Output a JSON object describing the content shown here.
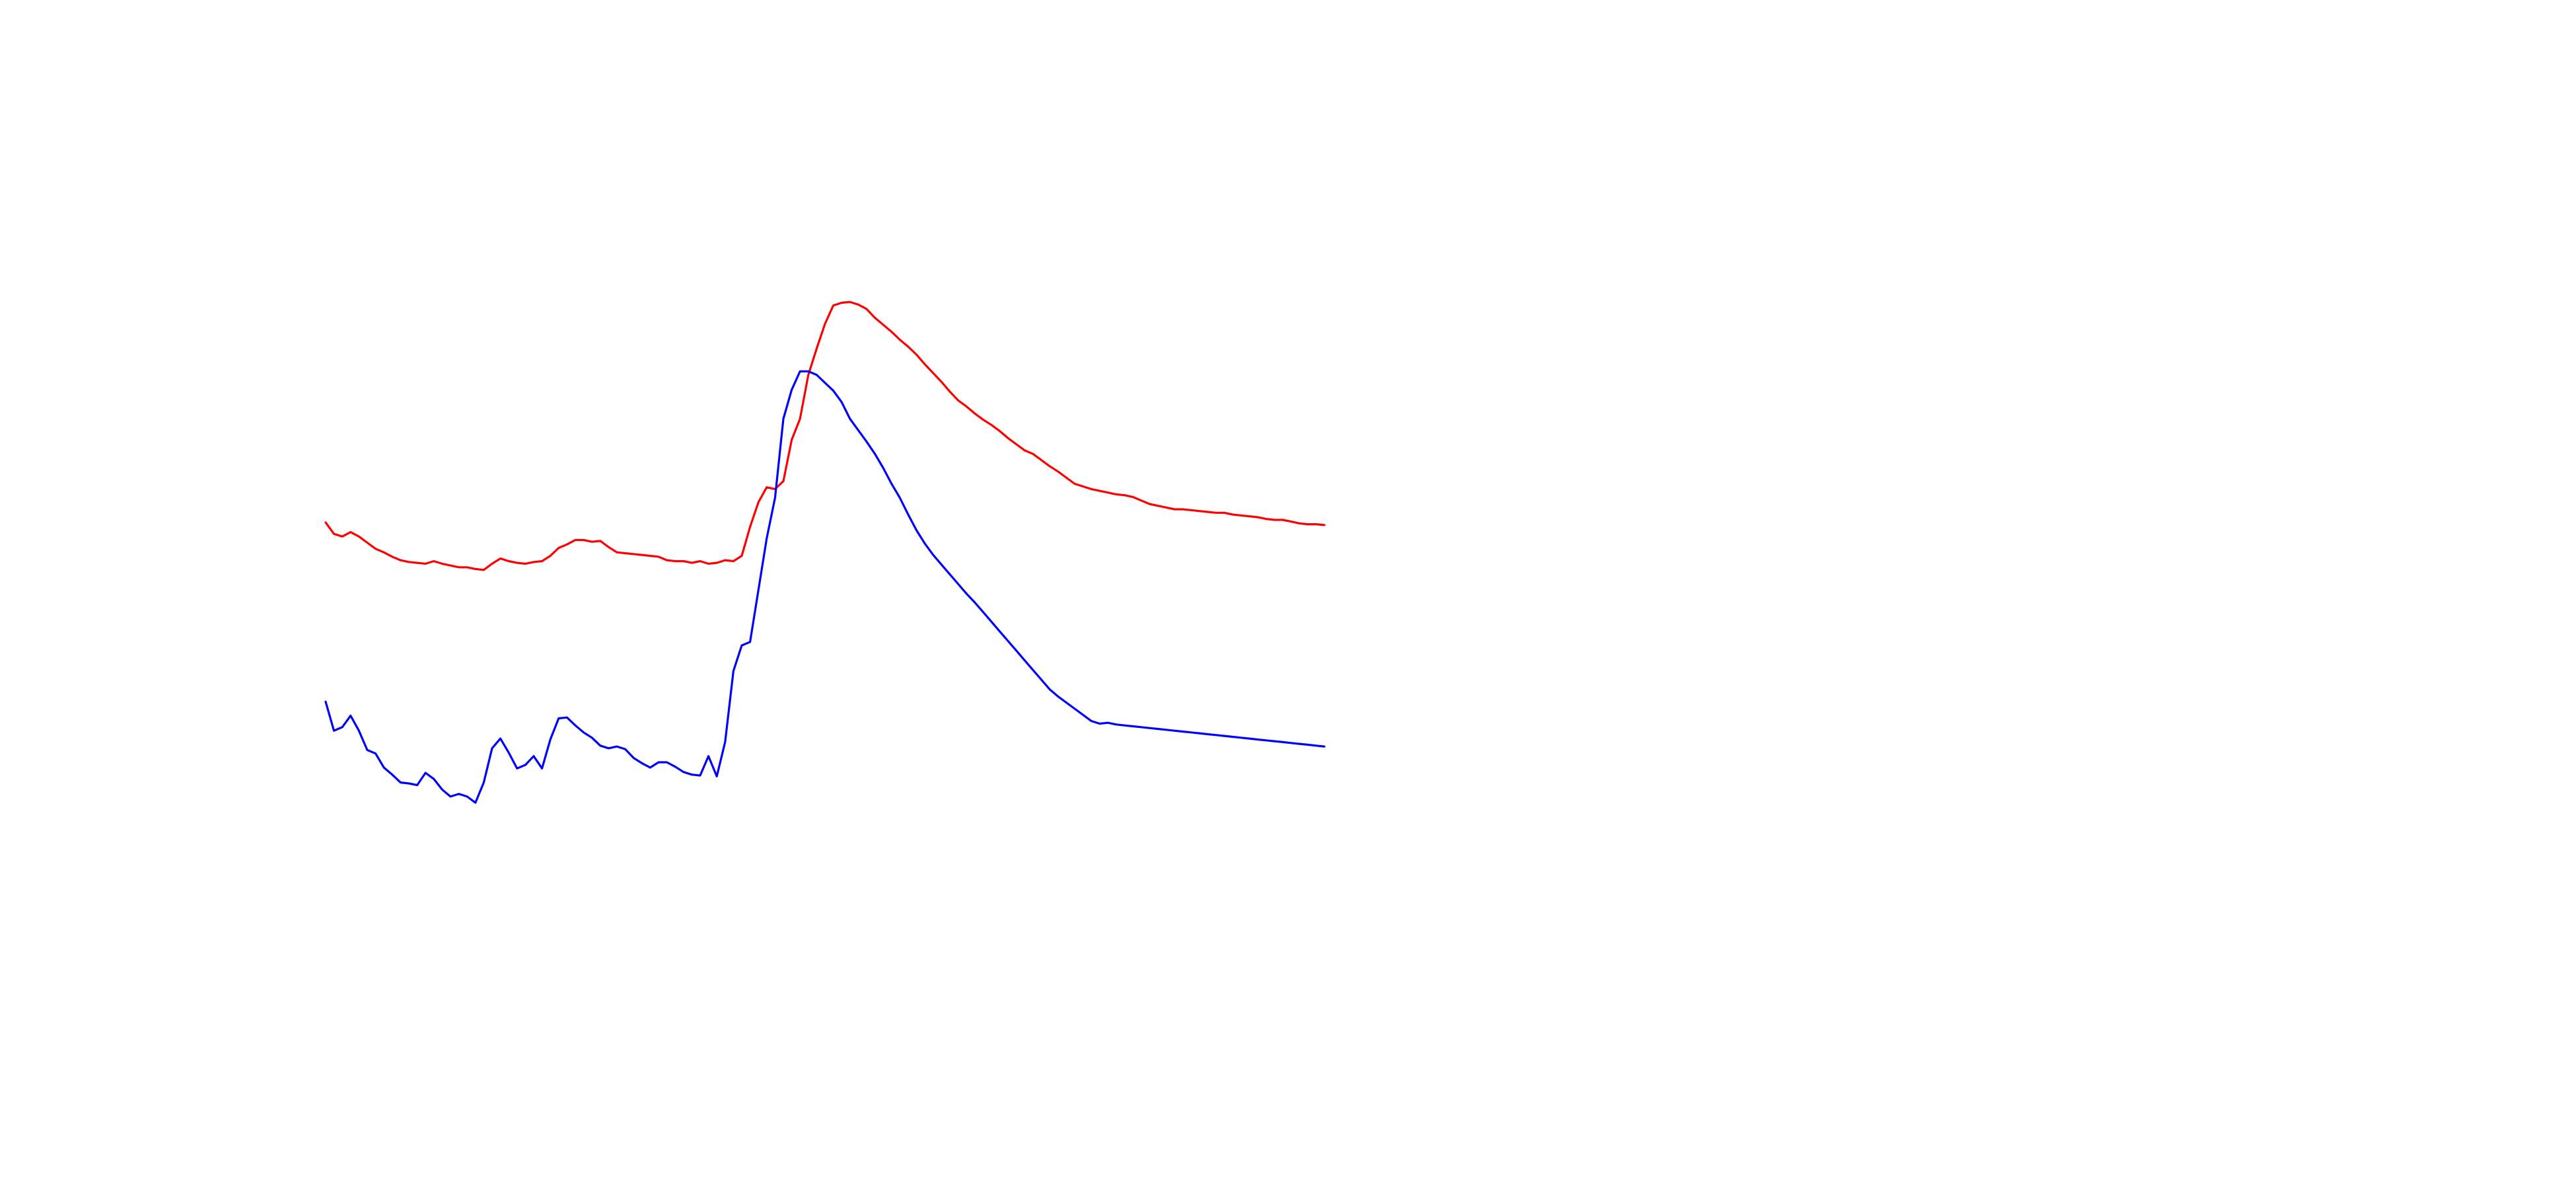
{
  "chart_data": {
    "type": "line",
    "title": "",
    "xlabel": "",
    "ylabel": "",
    "grid": false,
    "axes_visible": false,
    "legend": false,
    "x": [
      0,
      2,
      4,
      6,
      8,
      10,
      12,
      14,
      16,
      18,
      20,
      22,
      24,
      26,
      28,
      30,
      32,
      34,
      36,
      38,
      40,
      42,
      44,
      46,
      48,
      50,
      52,
      54,
      56,
      58,
      60,
      62,
      64,
      66,
      68,
      70,
      72,
      74,
      76,
      78,
      80,
      82,
      84,
      86,
      88,
      90,
      92,
      94,
      96,
      98,
      100,
      102,
      104,
      106,
      108,
      110,
      112,
      114,
      116,
      118,
      120,
      122,
      124,
      126,
      128,
      130,
      132,
      134,
      136,
      138,
      140,
      142,
      144,
      146,
      148,
      150,
      152,
      154,
      156,
      158,
      160,
      162,
      164,
      166,
      168,
      170,
      172,
      174,
      176,
      178,
      180,
      182,
      184,
      186,
      188,
      190,
      192,
      194,
      196,
      198,
      200,
      202,
      204,
      206,
      208,
      210,
      212,
      214,
      216,
      218,
      220,
      222,
      224,
      226,
      228,
      230,
      232,
      234,
      236,
      238,
      240
    ],
    "xlim": [
      0,
      240
    ],
    "ylim": [
      0,
      100
    ],
    "series": [
      {
        "color": "#ff0000",
        "values": [
          58.2,
          56.9,
          56.6,
          57.1,
          56.6,
          55.9,
          55.2,
          54.8,
          54.3,
          53.9,
          53.7,
          53.6,
          53.5,
          53.8,
          53.5,
          53.3,
          53.1,
          53.1,
          52.9,
          52.8,
          53.5,
          54.1,
          53.8,
          53.6,
          53.5,
          53.7,
          53.8,
          54.4,
          55.3,
          55.7,
          56.2,
          56.2,
          56.0,
          56.1,
          55.4,
          54.8,
          54.7,
          54.6,
          54.5,
          54.4,
          54.3,
          53.9,
          53.8,
          53.8,
          53.6,
          53.8,
          53.5,
          53.6,
          53.9,
          53.8,
          54.4,
          57.7,
          60.5,
          62.2,
          62.0,
          62.9,
          67.6,
          70.0,
          75.0,
          78.0,
          80.8,
          82.9,
          83.2,
          83.3,
          83.0,
          82.5,
          81.5,
          80.7,
          79.9,
          79.0,
          78.2,
          77.3,
          76.2,
          75.2,
          74.2,
          73.1,
          72.1,
          71.4,
          70.6,
          69.9,
          69.3,
          68.6,
          67.8,
          67.1,
          66.4,
          66.0,
          65.3,
          64.6,
          64.0,
          63.3,
          62.6,
          62.3,
          62.0,
          61.8,
          61.6,
          61.4,
          61.3,
          61.1,
          60.7,
          60.3,
          60.1,
          59.9,
          59.7,
          59.7,
          59.6,
          59.5,
          59.4,
          59.3,
          59.3,
          59.1,
          59.0,
          58.9,
          58.8,
          58.6,
          58.5,
          58.5,
          58.3,
          58.1,
          58.0,
          58.0,
          57.9
        ]
      },
      {
        "color": "#0000ff",
        "values": [
          37.8,
          34.5,
          34.9,
          36.2,
          34.5,
          32.3,
          31.9,
          30.3,
          29.5,
          28.6,
          28.5,
          28.3,
          29.7,
          29.0,
          27.8,
          27.0,
          27.3,
          27.0,
          26.3,
          28.6,
          32.5,
          33.6,
          32.0,
          30.2,
          30.6,
          31.6,
          30.2,
          33.5,
          35.9,
          36.0,
          35.1,
          34.3,
          33.7,
          32.8,
          32.5,
          32.7,
          32.4,
          31.4,
          30.8,
          30.3,
          30.9,
          30.9,
          30.4,
          29.8,
          29.5,
          29.4,
          31.6,
          29.3,
          33.2,
          41.3,
          44.2,
          44.6,
          50.5,
          56.4,
          61.0,
          70.0,
          73.3,
          75.4,
          75.4,
          75.0,
          74.1,
          73.2,
          71.9,
          70.0,
          68.7,
          67.4,
          66.0,
          64.4,
          62.6,
          61.0,
          59.1,
          57.3,
          55.8,
          54.5,
          53.4,
          52.3,
          51.2,
          50.1,
          49.1,
          48.0,
          46.9,
          45.8,
          44.7,
          43.6,
          42.5,
          41.4,
          40.3,
          39.2,
          38.4,
          37.7,
          37.0,
          36.3,
          35.6,
          35.3,
          35.4,
          35.2,
          35.1,
          35.0,
          34.9,
          34.8,
          34.7,
          34.6,
          34.5,
          34.4,
          34.3,
          34.2,
          34.1,
          34.0,
          33.9,
          33.8,
          33.7,
          33.6,
          33.5,
          33.4,
          33.3,
          33.2,
          33.1,
          33.0,
          32.9,
          32.8,
          32.7
        ]
      }
    ]
  }
}
